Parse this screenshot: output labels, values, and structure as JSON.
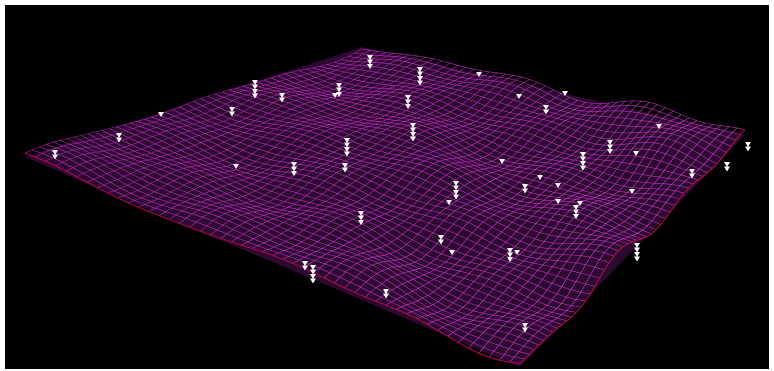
{
  "colors": {
    "background": "#000000",
    "frame": "#ffffff",
    "mesh_back": "#c020c0",
    "mesh_front": "#ff40ff",
    "mesh_shadow": "#b0003a",
    "markers": "#ffffff"
  },
  "scene": {
    "surface": "wireframe-terrain",
    "marker_icon": "down-triangle-icon",
    "marker_stack_counts": [
      1,
      2,
      3,
      4
    ]
  }
}
